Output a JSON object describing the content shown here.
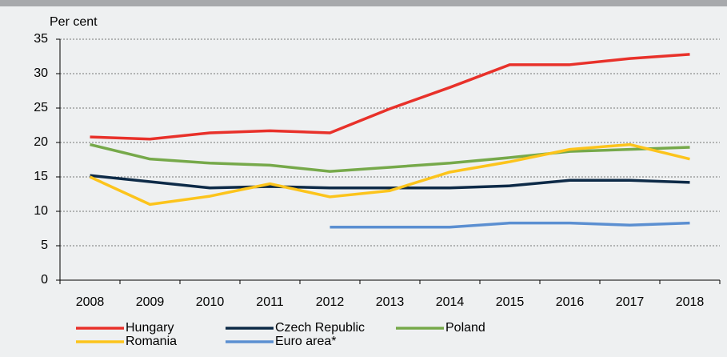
{
  "chart_data": {
    "type": "line",
    "y_label": "Per cent",
    "categories": [
      "2008",
      "2009",
      "2010",
      "2011",
      "2012",
      "2013",
      "2014",
      "2015",
      "2016",
      "2017",
      "2018"
    ],
    "series": [
      {
        "name": "Hungary",
        "color": "#e8312a",
        "values": [
          20.8,
          20.5,
          21.4,
          21.7,
          21.4,
          24.9,
          28.0,
          31.3,
          31.3,
          32.2,
          32.8
        ]
      },
      {
        "name": "Czech Republic",
        "color": "#0d2a47",
        "values": [
          15.2,
          14.3,
          13.4,
          13.6,
          13.4,
          13.4,
          13.4,
          13.7,
          14.5,
          14.5,
          14.2
        ]
      },
      {
        "name": "Poland",
        "color": "#76a94a",
        "values": [
          19.7,
          17.6,
          17.0,
          16.7,
          15.8,
          16.4,
          17.0,
          17.8,
          18.7,
          19.0,
          19.3
        ]
      },
      {
        "name": "Romania",
        "color": "#fcc41c",
        "values": [
          15.0,
          11.0,
          12.2,
          14.0,
          12.1,
          13.0,
          15.7,
          17.2,
          19.0,
          19.7,
          17.6
        ]
      },
      {
        "name": "Euro area*",
        "color": "#5b8fd1",
        "values": [
          null,
          null,
          null,
          null,
          7.7,
          7.7,
          7.7,
          8.3,
          8.3,
          8.0,
          8.3
        ]
      }
    ],
    "ylim": [
      0,
      35
    ],
    "yticks": [
      0,
      5,
      10,
      15,
      20,
      25,
      30,
      35
    ],
    "grid": true
  }
}
